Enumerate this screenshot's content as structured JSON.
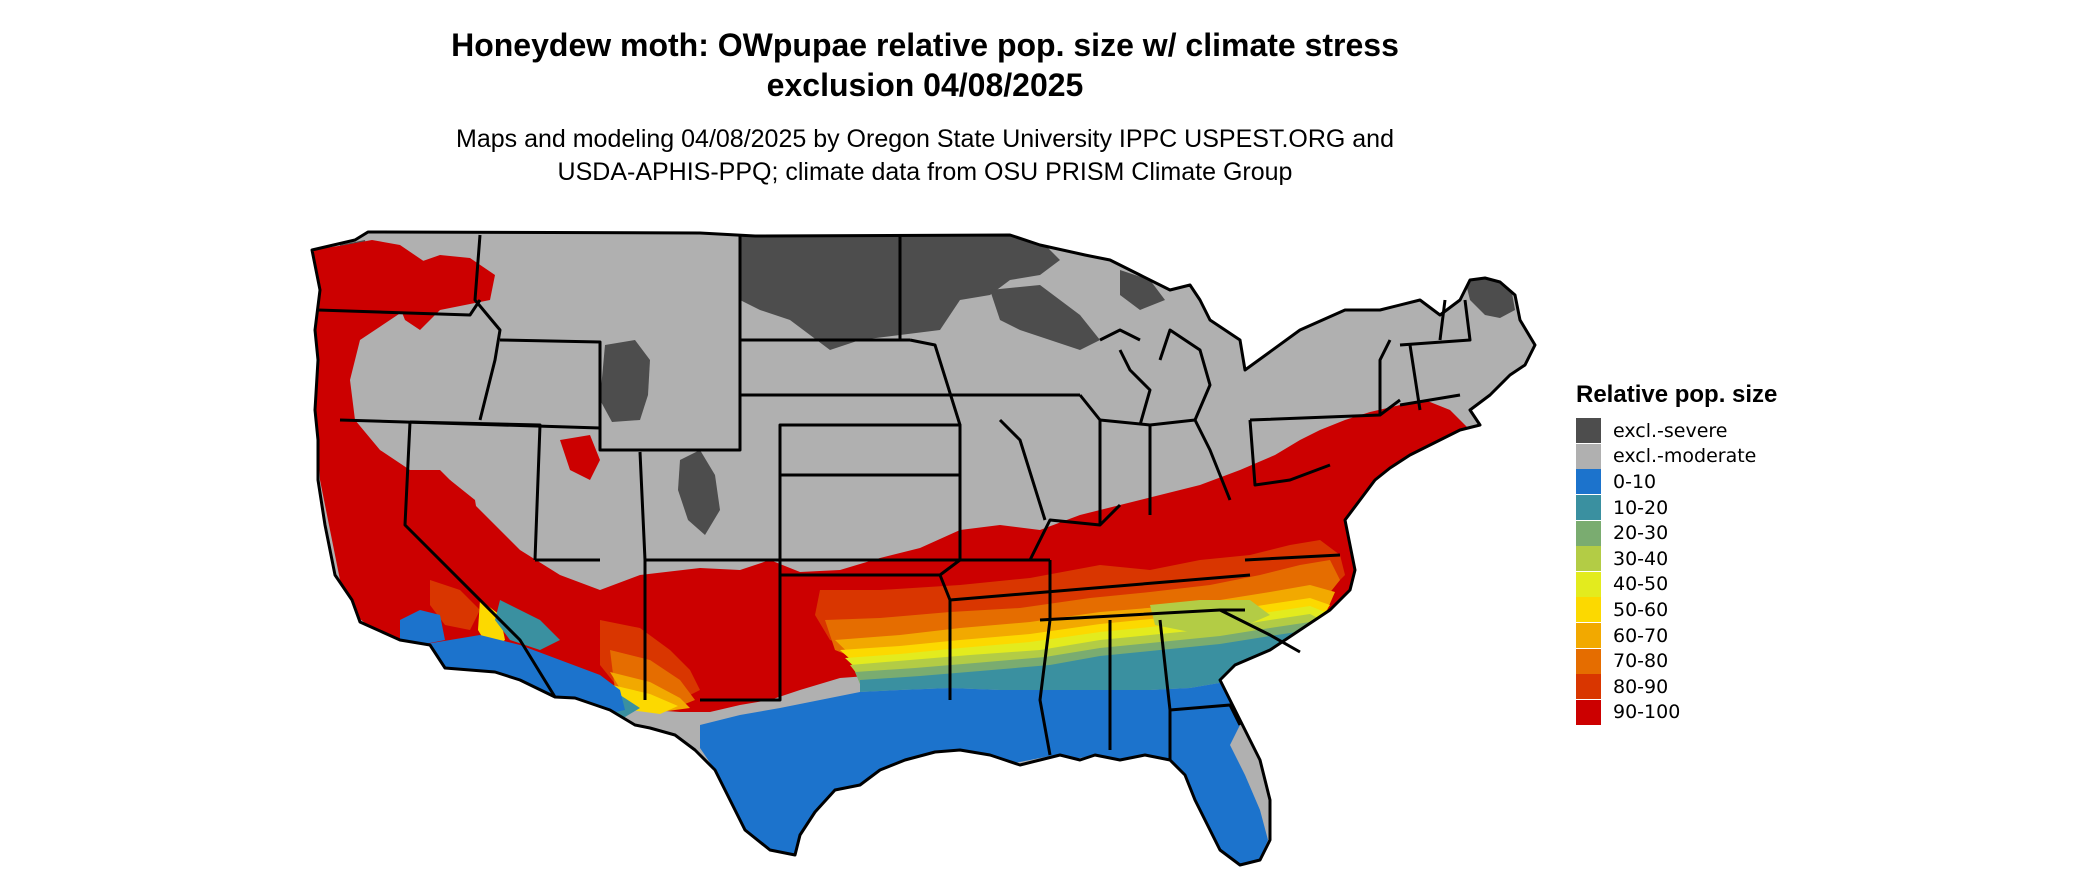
{
  "title_line1": "Honeydew moth: OWpupae relative pop. size w/ climate stress",
  "title_line2": "exclusion 04/08/2025",
  "subtitle_line1": "Maps and modeling 04/08/2025 by Oregon State University IPPC USPEST.ORG and",
  "subtitle_line2": "USDA-APHIS-PPQ; climate data from OSU PRISM Climate Group",
  "legend": {
    "title": "Relative pop. size",
    "items": [
      {
        "label": "excl.-severe",
        "color": "#4d4d4d"
      },
      {
        "label": "excl.-moderate",
        "color": "#b0b0b0"
      },
      {
        "label": "0-10",
        "color": "#1c73cc"
      },
      {
        "label": "10-20",
        "color": "#3a90a0"
      },
      {
        "label": "20-30",
        "color": "#7aac70"
      },
      {
        "label": "30-40",
        "color": "#b3cc45"
      },
      {
        "label": "40-50",
        "color": "#e3eb1e"
      },
      {
        "label": "50-60",
        "color": "#fcd900"
      },
      {
        "label": "60-70",
        "color": "#f2a900"
      },
      {
        "label": "70-80",
        "color": "#e56d00"
      },
      {
        "label": "80-90",
        "color": "#d93600"
      },
      {
        "label": "90-100",
        "color": "#cc0000"
      }
    ]
  }
}
